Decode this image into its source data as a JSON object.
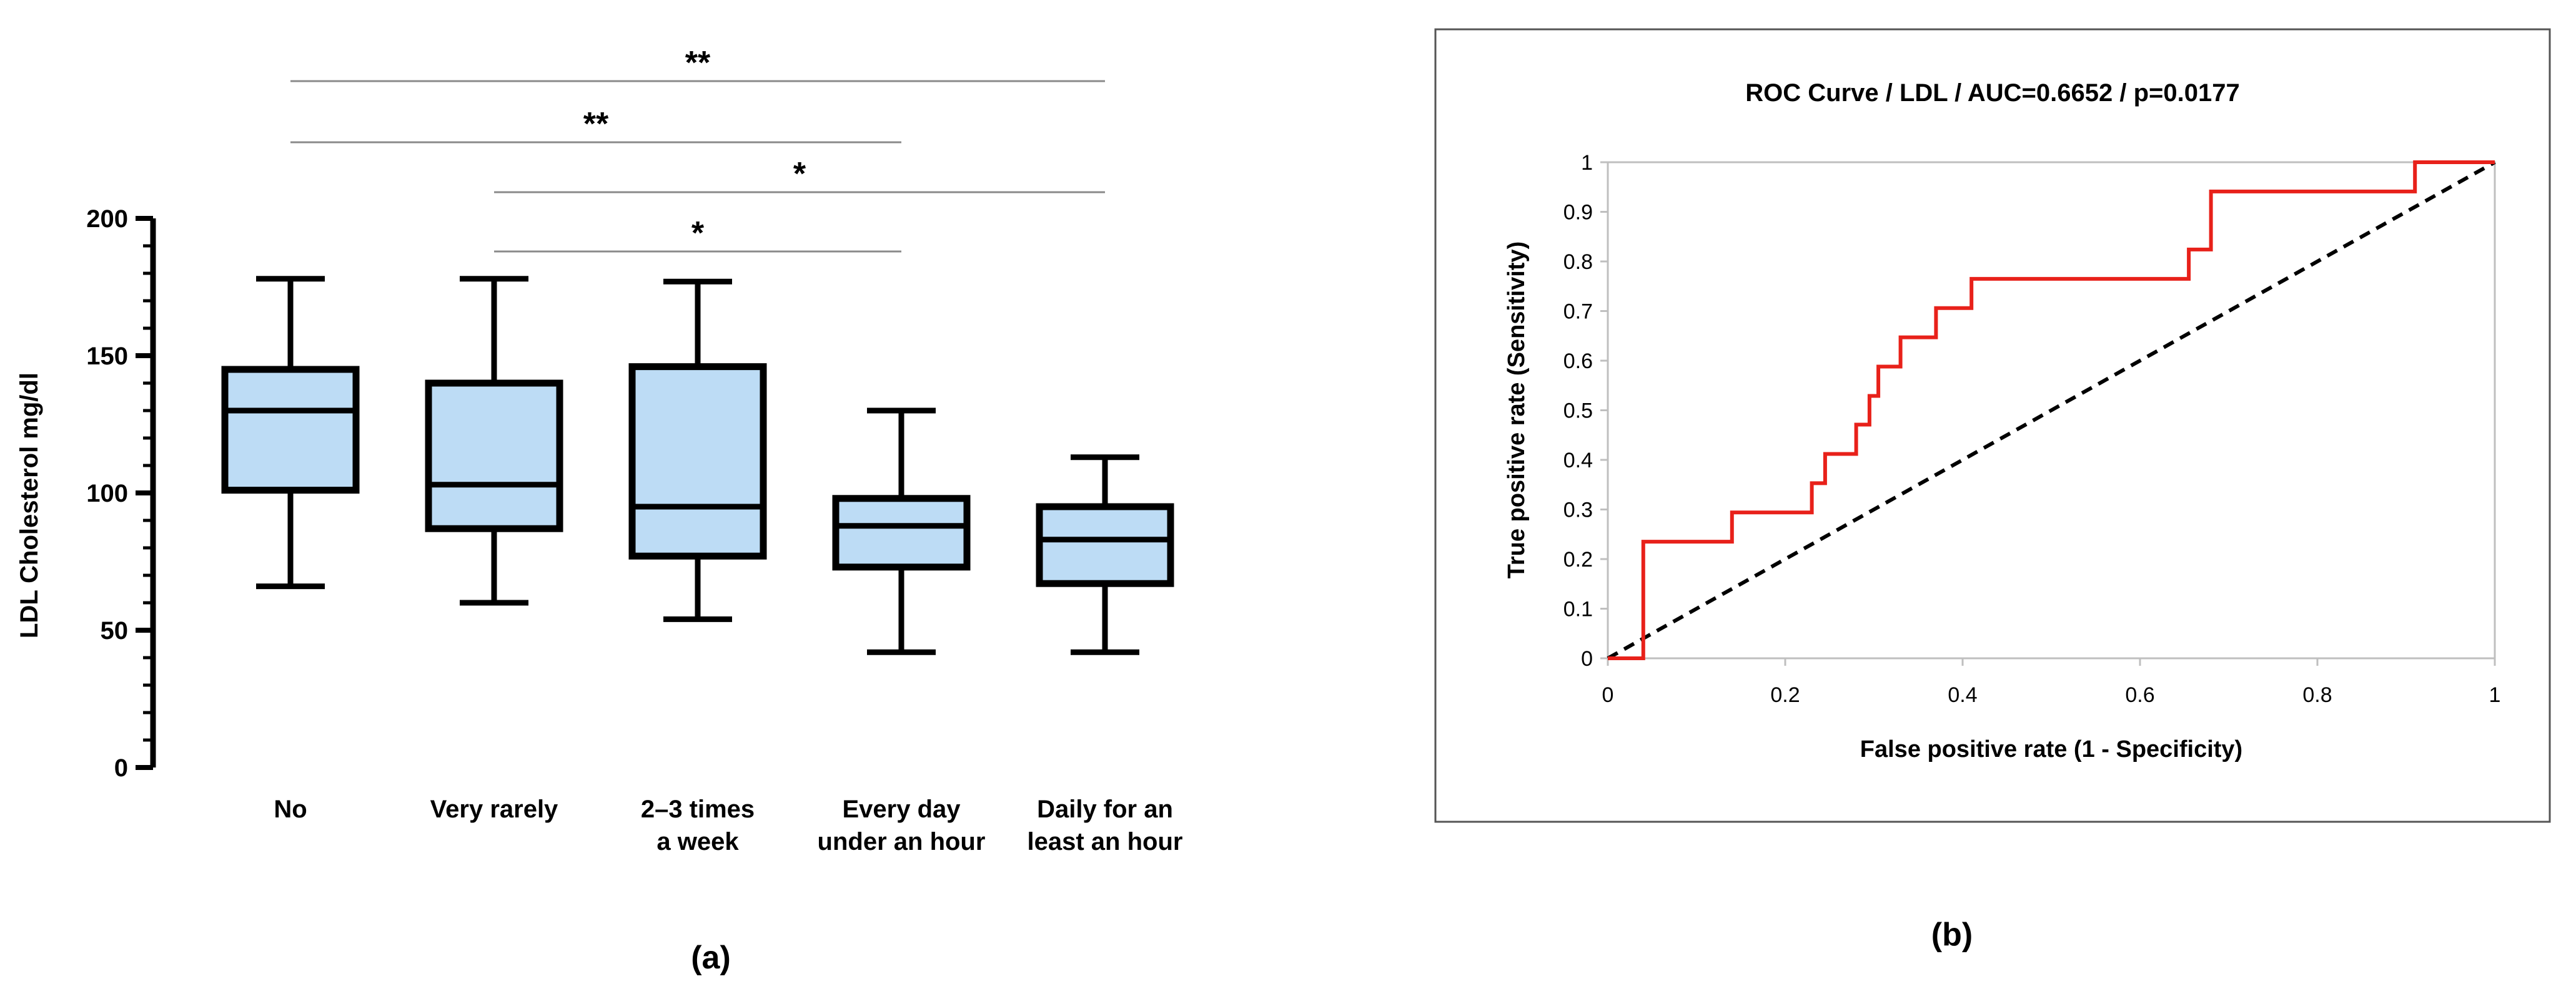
{
  "panels": {
    "a_label": "(a)",
    "b_label": "(b)"
  },
  "chart_data": [
    {
      "type": "box",
      "ylabel": "LDL Cholesterol mg/dl",
      "ylim": [
        0,
        200
      ],
      "yticks": [
        0,
        50,
        100,
        150,
        200
      ],
      "categories": [
        [
          "No"
        ],
        [
          "Very rarely"
        ],
        [
          "2–3 times",
          "a week"
        ],
        [
          "Every day",
          "under an hour"
        ],
        [
          "Daily for an",
          "least an hour"
        ]
      ],
      "boxes": [
        {
          "min": 66,
          "q1": 101,
          "median": 130,
          "q3": 145,
          "max": 178
        },
        {
          "min": 60,
          "q1": 87,
          "median": 103,
          "q3": 140,
          "max": 178
        },
        {
          "min": 54,
          "q1": 77,
          "median": 95,
          "q3": 146,
          "max": 177
        },
        {
          "min": 42,
          "q1": 73,
          "median": 88,
          "q3": 98,
          "max": 130
        },
        {
          "min": 42,
          "q1": 67,
          "median": 83,
          "q3": 95,
          "max": 113
        }
      ],
      "box_fill": "#bddcf5",
      "significance": [
        {
          "from": 0,
          "to": 4,
          "label": "**",
          "level": 0
        },
        {
          "from": 0,
          "to": 3,
          "label": "**",
          "level": 1
        },
        {
          "from": 1,
          "to": 4,
          "label": "*",
          "level": 2
        },
        {
          "from": 1,
          "to": 3,
          "label": "*",
          "level": 3
        }
      ]
    },
    {
      "type": "line",
      "title": "ROC Curve / LDL / AUC=0.6652 / p=0.0177",
      "xlabel": "False positive rate (1 - Specificity)",
      "ylabel": "True positive rate (Sensitivity)",
      "xlim": [
        0,
        1
      ],
      "ylim": [
        0,
        1
      ],
      "xticks": [
        "0",
        "0.2",
        "0.4",
        "0.6",
        "0.8",
        "1"
      ],
      "yticks": [
        "0",
        "0.1",
        "0.2",
        "0.3",
        "0.4",
        "0.5",
        "0.6",
        "0.7",
        "0.8",
        "0.9",
        "1"
      ],
      "roc_color": "#e8211a",
      "reference_color": "#000000",
      "roc_points": [
        [
          0,
          0
        ],
        [
          0.04,
          0
        ],
        [
          0.04,
          0.235
        ],
        [
          0.14,
          0.235
        ],
        [
          0.14,
          0.294
        ],
        [
          0.23,
          0.294
        ],
        [
          0.23,
          0.353
        ],
        [
          0.245,
          0.353
        ],
        [
          0.245,
          0.412
        ],
        [
          0.28,
          0.412
        ],
        [
          0.28,
          0.471
        ],
        [
          0.295,
          0.471
        ],
        [
          0.295,
          0.529
        ],
        [
          0.305,
          0.529
        ],
        [
          0.305,
          0.588
        ],
        [
          0.33,
          0.588
        ],
        [
          0.33,
          0.647
        ],
        [
          0.37,
          0.647
        ],
        [
          0.37,
          0.706
        ],
        [
          0.41,
          0.706
        ],
        [
          0.41,
          0.765
        ],
        [
          0.655,
          0.765
        ],
        [
          0.655,
          0.824
        ],
        [
          0.68,
          0.824
        ],
        [
          0.68,
          0.941
        ],
        [
          0.91,
          0.941
        ],
        [
          0.91,
          1
        ],
        [
          1,
          1
        ]
      ],
      "reference_points": [
        [
          0,
          0
        ],
        [
          1,
          1
        ]
      ]
    }
  ]
}
